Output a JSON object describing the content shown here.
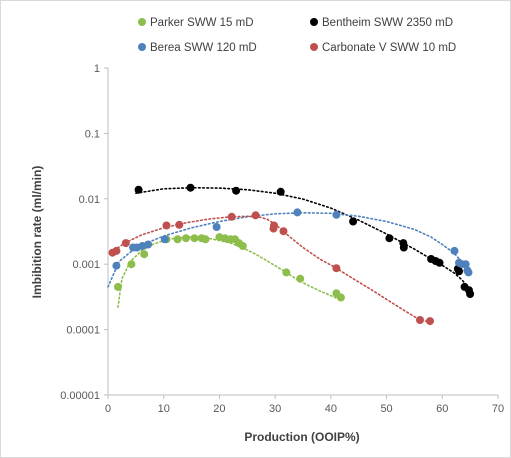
{
  "chart_data": {
    "type": "scatter",
    "title": "",
    "xlabel": "Production (OOIP%)",
    "ylabel": "Imbibition rate (ml/min)",
    "xlim": [
      0,
      70
    ],
    "ylim": [
      1e-05,
      1
    ],
    "y_scale": "log",
    "grid": false,
    "legend_position": "top",
    "x_ticks": [
      "0",
      "10",
      "20",
      "30",
      "40",
      "50",
      "60",
      "70"
    ],
    "y_ticks": [
      "0.00001",
      "0.0001",
      "0.001",
      "0.01",
      "0.1",
      "1"
    ],
    "series": [
      {
        "name": "Parker SWW 15 mD",
        "color": "#8DBE4B",
        "points": [
          [
            1.8,
            0.00045
          ],
          [
            4.2,
            0.001
          ],
          [
            6.5,
            0.00142
          ],
          [
            10.5,
            0.0024
          ],
          [
            12.5,
            0.0024
          ],
          [
            14,
            0.0025
          ],
          [
            15.5,
            0.0025
          ],
          [
            16.8,
            0.0025
          ],
          [
            17.5,
            0.0024
          ],
          [
            20,
            0.0026
          ],
          [
            21,
            0.0025
          ],
          [
            22,
            0.0024
          ],
          [
            22.8,
            0.0024
          ],
          [
            23.5,
            0.0021
          ],
          [
            24.2,
            0.0019
          ],
          [
            32,
            0.00075
          ],
          [
            34.5,
            0.0006
          ],
          [
            41,
            0.00036
          ],
          [
            41.8,
            0.00031
          ]
        ],
        "trend": [
          [
            1.8,
            0.00022
          ],
          [
            2.5,
            0.0006
          ],
          [
            4,
            0.0011
          ],
          [
            6,
            0.0016
          ],
          [
            8,
            0.002
          ],
          [
            10,
            0.0023
          ],
          [
            12,
            0.0025
          ],
          [
            14,
            0.0026
          ],
          [
            16,
            0.0026
          ],
          [
            18,
            0.0025
          ],
          [
            20,
            0.0023
          ],
          [
            22,
            0.0021
          ],
          [
            24,
            0.0018
          ],
          [
            26,
            0.0015
          ],
          [
            28,
            0.0012
          ],
          [
            30,
            0.00095
          ],
          [
            32,
            0.00075
          ],
          [
            34,
            0.00058
          ],
          [
            36,
            0.00047
          ],
          [
            38,
            0.00039
          ],
          [
            40,
            0.00033
          ],
          [
            42,
            0.00028
          ]
        ]
      },
      {
        "name": "Bentheim SWW 2350 mD",
        "color": "#000000",
        "points": [
          [
            5.5,
            0.0138
          ],
          [
            14.8,
            0.0148
          ],
          [
            23,
            0.0133
          ],
          [
            31,
            0.0128
          ],
          [
            44,
            0.0045
          ],
          [
            50.5,
            0.0025
          ],
          [
            53,
            0.0021
          ],
          [
            53.1,
            0.0018
          ],
          [
            58,
            0.0012
          ],
          [
            58.8,
            0.00112
          ],
          [
            59.5,
            0.00105
          ],
          [
            62.8,
            0.00085
          ],
          [
            63,
            0.00078
          ],
          [
            64,
            0.00045
          ],
          [
            64.8,
            0.0004
          ],
          [
            65,
            0.00035
          ]
        ],
        "trend": [
          [
            5,
            0.0122
          ],
          [
            10,
            0.0142
          ],
          [
            15,
            0.0148
          ],
          [
            20,
            0.0146
          ],
          [
            25,
            0.0138
          ],
          [
            30,
            0.0122
          ],
          [
            35,
            0.0099
          ],
          [
            40,
            0.0072
          ],
          [
            45,
            0.0047
          ],
          [
            50,
            0.0029
          ],
          [
            55,
            0.0017
          ],
          [
            58,
            0.0012
          ],
          [
            60,
            0.00096
          ],
          [
            62,
            0.00075
          ],
          [
            63.5,
            0.00058
          ],
          [
            64.5,
            0.00046
          ],
          [
            65,
            0.00039
          ]
        ]
      },
      {
        "name": "Berea SWW 120 mD",
        "color": "#4F81BD",
        "points": [
          [
            1.5,
            0.00095
          ],
          [
            4.5,
            0.0018
          ],
          [
            5.2,
            0.0018
          ],
          [
            6.2,
            0.0019
          ],
          [
            7.2,
            0.002
          ],
          [
            10.2,
            0.0024
          ],
          [
            19.5,
            0.0037
          ],
          [
            34,
            0.0062
          ],
          [
            41,
            0.0057
          ],
          [
            62.2,
            0.0016
          ],
          [
            63,
            0.00105
          ],
          [
            63.5,
            0.001
          ],
          [
            64.2,
            0.001
          ],
          [
            64.5,
            0.0008
          ],
          [
            64.7,
            0.00075
          ]
        ],
        "trend": [
          [
            0,
            0.00045
          ],
          [
            2,
            0.0011
          ],
          [
            5,
            0.0018
          ],
          [
            10,
            0.0027
          ],
          [
            15,
            0.0036
          ],
          [
            20,
            0.0045
          ],
          [
            25,
            0.0053
          ],
          [
            30,
            0.0059
          ],
          [
            35,
            0.0061
          ],
          [
            40,
            0.006
          ],
          [
            45,
            0.0054
          ],
          [
            50,
            0.0045
          ],
          [
            55,
            0.0034
          ],
          [
            58,
            0.0026
          ],
          [
            60,
            0.002
          ],
          [
            62,
            0.0015
          ],
          [
            63.5,
            0.0011
          ],
          [
            64.7,
            0.00075
          ]
        ]
      },
      {
        "name": "Carbonate V SWW 10 mD",
        "color": "#C0504D",
        "points": [
          [
            0.8,
            0.0015
          ],
          [
            1.5,
            0.0016
          ],
          [
            3.2,
            0.0021
          ],
          [
            10.5,
            0.0039
          ],
          [
            12.8,
            0.004
          ],
          [
            22.2,
            0.0053
          ],
          [
            26.5,
            0.0056
          ],
          [
            29.7,
            0.0035
          ],
          [
            29.8,
            0.0039
          ],
          [
            31.5,
            0.0032
          ],
          [
            41,
            0.00087
          ],
          [
            56,
            0.00014
          ],
          [
            57.8,
            0.000135
          ]
        ],
        "trend": [
          [
            0.5,
            0.0015
          ],
          [
            3,
            0.0021
          ],
          [
            6,
            0.0028
          ],
          [
            10,
            0.0036
          ],
          [
            14,
            0.0043
          ],
          [
            18,
            0.0049
          ],
          [
            22,
            0.0053
          ],
          [
            25,
            0.0054
          ],
          [
            27,
            0.0053
          ],
          [
            28.5,
            0.0049
          ],
          [
            30,
            0.0041
          ],
          [
            32,
            0.0029
          ],
          [
            35,
            0.0018
          ],
          [
            38,
            0.0012
          ],
          [
            41,
            0.00087
          ],
          [
            44,
            0.0006
          ],
          [
            47,
            0.00042
          ],
          [
            50,
            0.00029
          ],
          [
            53,
            0.0002
          ],
          [
            56,
            0.00014
          ],
          [
            58,
            0.00013
          ]
        ]
      }
    ]
  }
}
